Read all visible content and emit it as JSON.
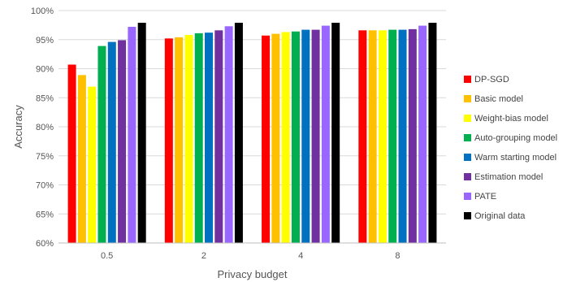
{
  "chart_data": {
    "type": "bar",
    "xlabel": "Privacy budget",
    "ylabel": "Accuracy",
    "categories": [
      "0.5",
      "2",
      "4",
      "8"
    ],
    "ylim": [
      60,
      100
    ],
    "yticks": [
      "60%",
      "65%",
      "70%",
      "75%",
      "80%",
      "85%",
      "90%",
      "95%",
      "100%"
    ],
    "grid": true,
    "legend_position": "right",
    "series": [
      {
        "name": "DP-SGD",
        "color": "#ff0000",
        "values": [
          90.7,
          95.2,
          95.7,
          96.6
        ]
      },
      {
        "name": "Basic model",
        "color": "#ffc000",
        "values": [
          88.9,
          95.4,
          96.0,
          96.6
        ]
      },
      {
        "name": "Weight-bias model",
        "color": "#ffff00",
        "values": [
          86.9,
          95.8,
          96.3,
          96.6
        ]
      },
      {
        "name": "Auto-grouping model",
        "color": "#00b050",
        "values": [
          93.9,
          96.1,
          96.4,
          96.7
        ]
      },
      {
        "name": "Warm starting model",
        "color": "#0070c0",
        "values": [
          94.6,
          96.2,
          96.7,
          96.7
        ]
      },
      {
        "name": "Estimation model",
        "color": "#7030a0",
        "values": [
          94.9,
          96.6,
          96.7,
          96.8
        ]
      },
      {
        "name": "PATE",
        "color": "#9966ff",
        "values": [
          97.2,
          97.3,
          97.4,
          97.4
        ]
      },
      {
        "name": "Original data",
        "color": "#000000",
        "values": [
          97.9,
          97.9,
          97.9,
          97.9
        ]
      }
    ]
  }
}
